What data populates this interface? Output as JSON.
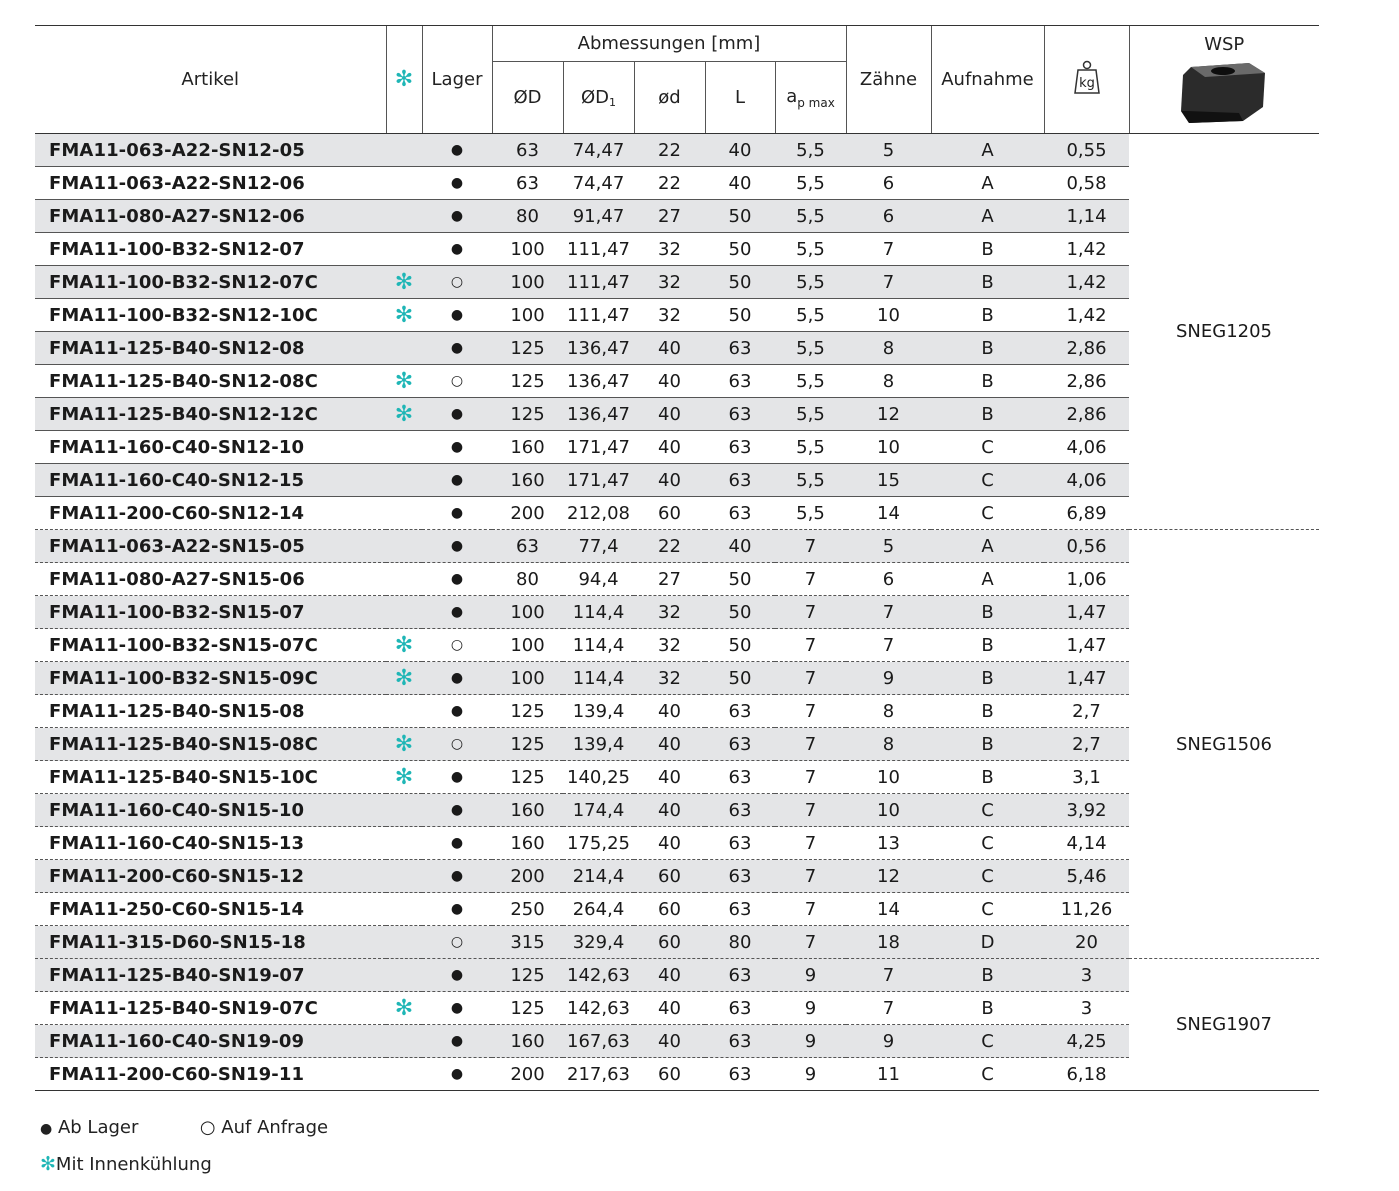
{
  "header": {
    "artikel": "Artikel",
    "lager": "Lager",
    "abmessungen": "Abmessungen [mm]",
    "dD": "ØD",
    "dD1_main": "ØD",
    "dD1_sub": "1",
    "d_small": "ød",
    "L": "L",
    "ap_main": "a",
    "ap_sub": "p max",
    "zaehne": "Zähne",
    "aufnahme": "Aufnahme",
    "kg": "kg",
    "wsp": "WSP"
  },
  "symbols": {
    "cooling": "✻",
    "stock": "●",
    "request": "○"
  },
  "colors": {
    "cooling": "#1fb6b6",
    "row_shade": "#e4e5e7"
  },
  "wsp_groups": [
    "SNEG1205",
    "SNEG1506",
    "SNEG1907"
  ],
  "rows": [
    {
      "a": "FMA11-063-A22-SN12-05",
      "c": "",
      "s": "●",
      "D": "63",
      "D1": "74,47",
      "d": "22",
      "L": "40",
      "ap": "5,5",
      "z": "5",
      "au": "A",
      "kg": "0,55"
    },
    {
      "a": "FMA11-063-A22-SN12-06",
      "c": "",
      "s": "●",
      "D": "63",
      "D1": "74,47",
      "d": "22",
      "L": "40",
      "ap": "5,5",
      "z": "6",
      "au": "A",
      "kg": "0,58"
    },
    {
      "a": "FMA11-080-A27-SN12-06",
      "c": "",
      "s": "●",
      "D": "80",
      "D1": "91,47",
      "d": "27",
      "L": "50",
      "ap": "5,5",
      "z": "6",
      "au": "A",
      "kg": "1,14"
    },
    {
      "a": "FMA11-100-B32-SN12-07",
      "c": "",
      "s": "●",
      "D": "100",
      "D1": "111,47",
      "d": "32",
      "L": "50",
      "ap": "5,5",
      "z": "7",
      "au": "B",
      "kg": "1,42"
    },
    {
      "a": "FMA11-100-B32-SN12-07C",
      "c": "✻",
      "s": "○",
      "D": "100",
      "D1": "111,47",
      "d": "32",
      "L": "50",
      "ap": "5,5",
      "z": "7",
      "au": "B",
      "kg": "1,42"
    },
    {
      "a": "FMA11-100-B32-SN12-10C",
      "c": "✻",
      "s": "●",
      "D": "100",
      "D1": "111,47",
      "d": "32",
      "L": "50",
      "ap": "5,5",
      "z": "10",
      "au": "B",
      "kg": "1,42"
    },
    {
      "a": "FMA11-125-B40-SN12-08",
      "c": "",
      "s": "●",
      "D": "125",
      "D1": "136,47",
      "d": "40",
      "L": "63",
      "ap": "5,5",
      "z": "8",
      "au": "B",
      "kg": "2,86"
    },
    {
      "a": "FMA11-125-B40-SN12-08C",
      "c": "✻",
      "s": "○",
      "D": "125",
      "D1": "136,47",
      "d": "40",
      "L": "63",
      "ap": "5,5",
      "z": "8",
      "au": "B",
      "kg": "2,86"
    },
    {
      "a": "FMA11-125-B40-SN12-12C",
      "c": "✻",
      "s": "●",
      "D": "125",
      "D1": "136,47",
      "d": "40",
      "L": "63",
      "ap": "5,5",
      "z": "12",
      "au": "B",
      "kg": "2,86"
    },
    {
      "a": "FMA11-160-C40-SN12-10",
      "c": "",
      "s": "●",
      "D": "160",
      "D1": "171,47",
      "d": "40",
      "L": "63",
      "ap": "5,5",
      "z": "10",
      "au": "C",
      "kg": "4,06"
    },
    {
      "a": "FMA11-160-C40-SN12-15",
      "c": "",
      "s": "●",
      "D": "160",
      "D1": "171,47",
      "d": "40",
      "L": "63",
      "ap": "5,5",
      "z": "15",
      "au": "C",
      "kg": "4,06"
    },
    {
      "a": "FMA11-200-C60-SN12-14",
      "c": "",
      "s": "●",
      "D": "200",
      "D1": "212,08",
      "d": "60",
      "L": "63",
      "ap": "5,5",
      "z": "14",
      "au": "C",
      "kg": "6,89"
    },
    {
      "a": "FMA11-063-A22-SN15-05",
      "c": "",
      "s": "●",
      "D": "63",
      "D1": "77,4",
      "d": "22",
      "L": "40",
      "ap": "7",
      "z": "5",
      "au": "A",
      "kg": "0,56"
    },
    {
      "a": "FMA11-080-A27-SN15-06",
      "c": "",
      "s": "●",
      "D": "80",
      "D1": "94,4",
      "d": "27",
      "L": "50",
      "ap": "7",
      "z": "6",
      "au": "A",
      "kg": "1,06"
    },
    {
      "a": "FMA11-100-B32-SN15-07",
      "c": "",
      "s": "●",
      "D": "100",
      "D1": "114,4",
      "d": "32",
      "L": "50",
      "ap": "7",
      "z": "7",
      "au": "B",
      "kg": "1,47"
    },
    {
      "a": "FMA11-100-B32-SN15-07C",
      "c": "✻",
      "s": "○",
      "D": "100",
      "D1": "114,4",
      "d": "32",
      "L": "50",
      "ap": "7",
      "z": "7",
      "au": "B",
      "kg": "1,47"
    },
    {
      "a": "FMA11-100-B32-SN15-09C",
      "c": "✻",
      "s": "●",
      "D": "100",
      "D1": "114,4",
      "d": "32",
      "L": "50",
      "ap": "7",
      "z": "9",
      "au": "B",
      "kg": "1,47"
    },
    {
      "a": "FMA11-125-B40-SN15-08",
      "c": "",
      "s": "●",
      "D": "125",
      "D1": "139,4",
      "d": "40",
      "L": "63",
      "ap": "7",
      "z": "8",
      "au": "B",
      "kg": "2,7"
    },
    {
      "a": "FMA11-125-B40-SN15-08C",
      "c": "✻",
      "s": "○",
      "D": "125",
      "D1": "139,4",
      "d": "40",
      "L": "63",
      "ap": "7",
      "z": "8",
      "au": "B",
      "kg": "2,7"
    },
    {
      "a": "FMA11-125-B40-SN15-10C",
      "c": "✻",
      "s": "●",
      "D": "125",
      "D1": "140,25",
      "d": "40",
      "L": "63",
      "ap": "7",
      "z": "10",
      "au": "B",
      "kg": "3,1"
    },
    {
      "a": "FMA11-160-C40-SN15-10",
      "c": "",
      "s": "●",
      "D": "160",
      "D1": "174,4",
      "d": "40",
      "L": "63",
      "ap": "7",
      "z": "10",
      "au": "C",
      "kg": "3,92"
    },
    {
      "a": "FMA11-160-C40-SN15-13",
      "c": "",
      "s": "●",
      "D": "160",
      "D1": "175,25",
      "d": "40",
      "L": "63",
      "ap": "7",
      "z": "13",
      "au": "C",
      "kg": "4,14"
    },
    {
      "a": "FMA11-200-C60-SN15-12",
      "c": "",
      "s": "●",
      "D": "200",
      "D1": "214,4",
      "d": "60",
      "L": "63",
      "ap": "7",
      "z": "12",
      "au": "C",
      "kg": "5,46"
    },
    {
      "a": "FMA11-250-C60-SN15-14",
      "c": "",
      "s": "●",
      "D": "250",
      "D1": "264,4",
      "d": "60",
      "L": "63",
      "ap": "7",
      "z": "14",
      "au": "C",
      "kg": "11,26"
    },
    {
      "a": "FMA11-315-D60-SN15-18",
      "c": "",
      "s": "○",
      "D": "315",
      "D1": "329,4",
      "d": "60",
      "L": "80",
      "ap": "7",
      "z": "18",
      "au": "D",
      "kg": "20"
    },
    {
      "a": "FMA11-125-B40-SN19-07",
      "c": "",
      "s": "●",
      "D": "125",
      "D1": "142,63",
      "d": "40",
      "L": "63",
      "ap": "9",
      "z": "7",
      "au": "B",
      "kg": "3"
    },
    {
      "a": "FMA11-125-B40-SN19-07C",
      "c": "✻",
      "s": "●",
      "D": "125",
      "D1": "142,63",
      "d": "40",
      "L": "63",
      "ap": "9",
      "z": "7",
      "au": "B",
      "kg": "3"
    },
    {
      "a": "FMA11-160-C40-SN19-09",
      "c": "",
      "s": "●",
      "D": "160",
      "D1": "167,63",
      "d": "40",
      "L": "63",
      "ap": "9",
      "z": "9",
      "au": "C",
      "kg": "4,25"
    },
    {
      "a": "FMA11-200-C60-SN19-11",
      "c": "",
      "s": "●",
      "D": "200",
      "D1": "217,63",
      "d": "60",
      "L": "63",
      "ap": "9",
      "z": "11",
      "au": "C",
      "kg": "6,18"
    }
  ],
  "legend": {
    "stock_symbol": "●",
    "stock_label": "Ab Lager",
    "request_symbol": "○",
    "request_label": "Auf Anfrage",
    "cooling_symbol": "✻",
    "cooling_label": "Mit Innenkühlung"
  }
}
